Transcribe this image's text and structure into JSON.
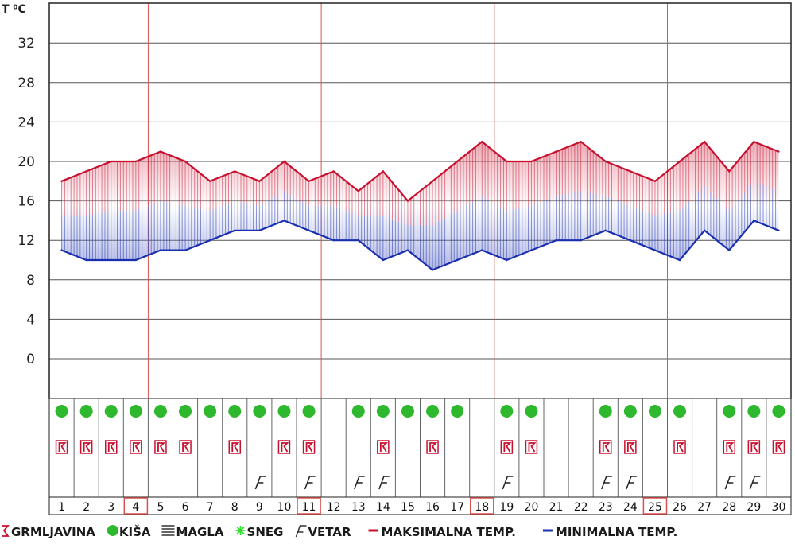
{
  "chart_data": {
    "type": "area",
    "ylabel": "T ⁰C",
    "yticks": [
      "32",
      "28",
      "24",
      "20",
      "16",
      "12",
      "8",
      "4",
      "0"
    ],
    "ylim": [
      -4,
      36
    ],
    "x": [
      1,
      2,
      3,
      4,
      5,
      6,
      7,
      8,
      9,
      10,
      11,
      12,
      13,
      14,
      15,
      16,
      17,
      18,
      19,
      20,
      21,
      22,
      23,
      24,
      25,
      26,
      27,
      28,
      29,
      30
    ],
    "highlighted_days": [
      4,
      11,
      18,
      25
    ],
    "series": [
      {
        "name": "MAKSIMALNA TEMP.",
        "color": "#c8102e",
        "values": [
          18,
          19,
          20,
          20,
          21,
          20,
          18,
          19,
          18,
          20,
          18,
          19,
          17,
          19,
          16,
          18,
          20,
          22,
          20,
          20,
          21,
          22,
          20,
          19,
          18,
          20,
          22,
          19,
          22,
          21
        ]
      },
      {
        "name": "MINIMALNA TEMP.",
        "color": "#1a2fb0",
        "values": [
          11,
          10,
          10,
          10,
          11,
          11,
          12,
          13,
          13,
          14,
          13,
          12,
          12,
          10,
          11,
          9,
          10,
          11,
          10,
          11,
          12,
          12,
          13,
          12,
          11,
          10,
          13,
          11,
          14,
          13
        ]
      }
    ],
    "weather": {
      "kisa": [
        1,
        2,
        3,
        4,
        5,
        6,
        7,
        8,
        9,
        10,
        11,
        13,
        14,
        15,
        16,
        17,
        19,
        20,
        23,
        24,
        25,
        26,
        28,
        29,
        30
      ],
      "grmljavina": [
        1,
        2,
        3,
        4,
        5,
        6,
        8,
        10,
        11,
        14,
        16,
        19,
        20,
        23,
        24,
        26,
        28,
        29,
        30
      ],
      "vetar": [
        9,
        11,
        13,
        14,
        19,
        23,
        24,
        28,
        29
      ]
    },
    "legend": [
      {
        "icon": "thunder-icon",
        "label": "GRMLJAVINA",
        "color": "#c8102e"
      },
      {
        "icon": "rain-icon",
        "label": "KIŠA",
        "color": "#2db82d"
      },
      {
        "icon": "fog-icon",
        "label": "MAGLA",
        "color": "#333333"
      },
      {
        "icon": "snow-icon",
        "label": "SNEG",
        "color": "#33dd33"
      },
      {
        "icon": "wind-icon",
        "label": "VETAR",
        "color": "#333333"
      },
      {
        "icon": "max-line-icon",
        "label": "MAKSIMALNA TEMP.",
        "color": "#c8102e"
      },
      {
        "icon": "min-line-icon",
        "label": "MINIMALNA TEMP.",
        "color": "#1a2fb0"
      }
    ]
  }
}
